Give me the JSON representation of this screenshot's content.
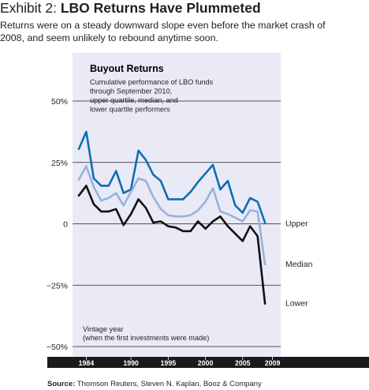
{
  "exhibit": {
    "label": "Exhibit 2:",
    "title": "LBO Returns Have Plummeted",
    "subtitle": "Returns were on a steady downward slope even before the market crash of 2008, and seem unlikely to rebound anytime soon."
  },
  "source": {
    "label": "Source:",
    "text": "Thomson Reuters, Steven N. Kaplan, Booz & Company"
  },
  "colors": {
    "panel": "#e9eaf6",
    "upper": "#0a6fb3",
    "median": "#97b3dc",
    "lower": "#111111",
    "axis_band": "#1a1a1a",
    "grid": "#231f20"
  },
  "chart_data": {
    "type": "line",
    "title": "Buyout Returns",
    "annotation": "Cumulative performance of LBO funds through September 2010, upper quartile, median, and lower quartile performers",
    "xlabel": "Vintage year (when the first investments were made)",
    "ylabel": "",
    "x_ticks": [
      1984,
      1990,
      1995,
      2000,
      2005,
      2009
    ],
    "y_ticks": [
      50,
      25,
      0,
      -25,
      -50
    ],
    "y_tick_labels": [
      "50%",
      "25%",
      "0",
      "−25%",
      "−50%"
    ],
    "xlim": [
      1983,
      2010
    ],
    "ylim": [
      -50,
      50
    ],
    "x": [
      1983,
      1984,
      1985,
      1986,
      1987,
      1988,
      1989,
      1990,
      1991,
      1992,
      1993,
      1994,
      1995,
      1996,
      1997,
      1998,
      1999,
      2000,
      2001,
      2002,
      2003,
      2004,
      2005,
      2006,
      2007,
      2008,
      2009
    ],
    "series": [
      {
        "name": "Upper",
        "values": [
          30.5,
          37.5,
          18.5,
          15.5,
          15.5,
          21.5,
          12.5,
          14.0,
          29.8,
          26.0,
          20.0,
          17.5,
          10.0,
          10.0,
          10.0,
          13.0,
          17.0,
          20.5,
          24.0,
          14.0,
          17.5,
          7.5,
          4.5,
          10.5,
          9.0,
          0.5,
          null
        ]
      },
      {
        "name": "Median",
        "values": [
          18.0,
          23.5,
          15.0,
          9.5,
          10.5,
          12.5,
          7.5,
          13.0,
          18.5,
          17.5,
          11.0,
          6.0,
          3.5,
          3.0,
          3.0,
          3.5,
          5.5,
          9.0,
          14.5,
          5.0,
          4.0,
          2.5,
          1.0,
          5.5,
          5.0,
          -16.5,
          null
        ]
      },
      {
        "name": "Lower",
        "values": [
          11.5,
          15.5,
          8.0,
          5.0,
          5.0,
          6.0,
          -0.5,
          4.0,
          10.0,
          6.5,
          0.5,
          1.0,
          -1.0,
          -1.5,
          -3.0,
          -3.0,
          1.0,
          -2.0,
          1.0,
          3.0,
          -1.0,
          -4.0,
          -7.0,
          -1.0,
          -5.0,
          -32.5,
          null
        ]
      }
    ]
  }
}
